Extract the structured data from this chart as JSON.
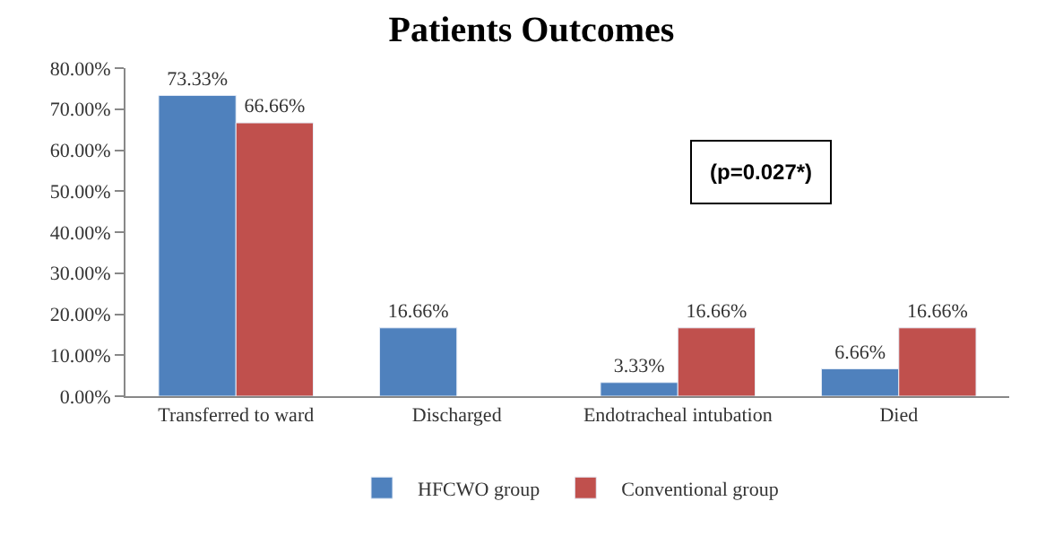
{
  "chart_data": {
    "type": "bar",
    "title": "Patients Outcomes",
    "categories": [
      "Transferred to ward",
      "Discharged",
      "Endotracheal intubation",
      "Died"
    ],
    "series": [
      {
        "name": "HFCWO group",
        "color": "#4f81bd",
        "values": [
          73.33,
          16.66,
          3.33,
          6.66
        ],
        "value_labels": [
          "73.33%",
          "16.66%",
          "3.33%",
          "6.66%"
        ]
      },
      {
        "name": "Conventional group",
        "color": "#c0504d",
        "values": [
          66.66,
          null,
          16.66,
          16.66
        ],
        "value_labels": [
          "66.66%",
          null,
          "16.66%",
          "16.66%"
        ]
      }
    ],
    "ylim": [
      0,
      80
    ],
    "yticks": [
      {
        "value": 0,
        "label": "0.00%"
      },
      {
        "value": 10,
        "label": "10.00%"
      },
      {
        "value": 20,
        "label": "20.00%"
      },
      {
        "value": 30,
        "label": "30.00%"
      },
      {
        "value": 40,
        "label": "40.00%"
      },
      {
        "value": 50,
        "label": "50.00%"
      },
      {
        "value": 60,
        "label": "60.00%"
      },
      {
        "value": 70,
        "label": "70.00%"
      },
      {
        "value": 80,
        "label": "80.00%"
      }
    ],
    "annotations": [
      "(p=0.027*)"
    ],
    "legend": "bottom"
  }
}
